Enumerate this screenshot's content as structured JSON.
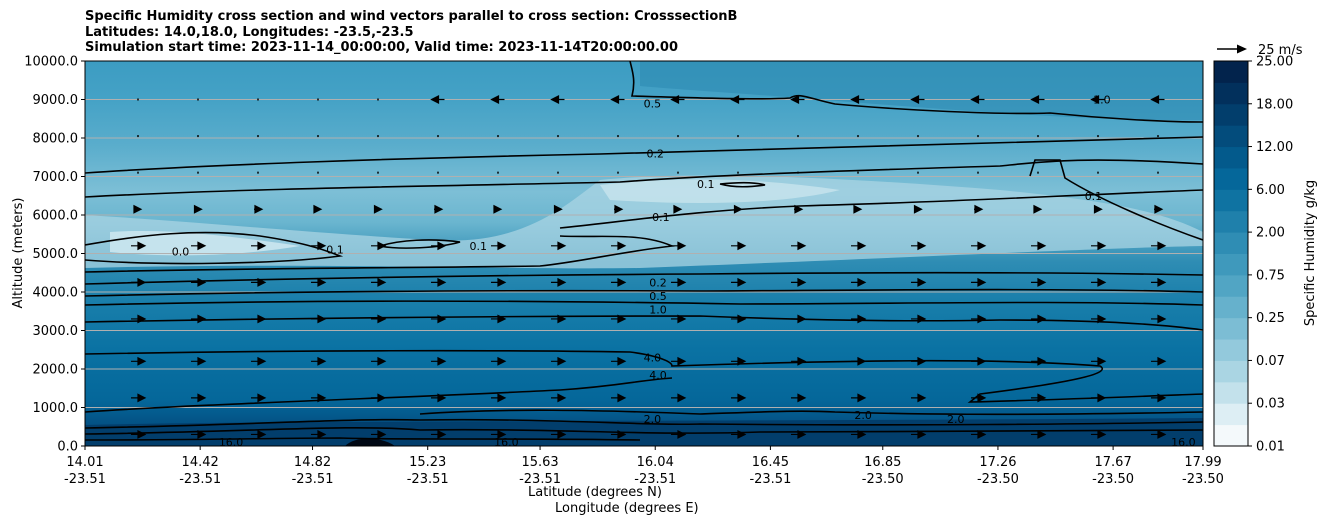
{
  "title_lines": [
    "Specific Humidity cross section and wind vectors parallel to cross section: CrosssectionB",
    "Latitudes: 14.0,18.0, Longitudes: -23.5,-23.5",
    "Simulation start time: 2023-11-14_00:00:00, Valid time: 2023-11-14T20:00:00.00"
  ],
  "xlabel_lines": [
    "Latitude (degrees N)",
    "Longitude (degrees E)"
  ],
  "ylabel": "Altitude (meters)",
  "colorbar_label": "Specific Humidity g/kg",
  "quiver_key_label": "25 m/s",
  "chart_data": {
    "type": "heatmap",
    "title": "Specific Humidity cross section and wind vectors parallel to cross section: CrosssectionB",
    "ylabel": "Altitude (meters)",
    "ylim": [
      0,
      10000
    ],
    "yticks": [
      "0.0",
      "1000.0",
      "2000.0",
      "3000.0",
      "4000.0",
      "5000.0",
      "6000.0",
      "7000.0",
      "8000.0",
      "9000.0",
      "10000.0"
    ],
    "xticks": [
      {
        "lat": "14.01",
        "lon": "-23.51"
      },
      {
        "lat": "14.42",
        "lon": "-23.51"
      },
      {
        "lat": "14.82",
        "lon": "-23.51"
      },
      {
        "lat": "15.23",
        "lon": "-23.51"
      },
      {
        "lat": "15.63",
        "lon": "-23.51"
      },
      {
        "lat": "16.04",
        "lon": "-23.51"
      },
      {
        "lat": "16.45",
        "lon": "-23.51"
      },
      {
        "lat": "16.85",
        "lon": "-23.50"
      },
      {
        "lat": "17.26",
        "lon": "-23.50"
      },
      {
        "lat": "17.67",
        "lon": "-23.50"
      },
      {
        "lat": "17.99",
        "lon": "-23.50"
      }
    ],
    "grid": "horizontal",
    "colorbar_levels": [
      0.01,
      0.02,
      0.03,
      0.05,
      0.07,
      0.1,
      0.25,
      0.5,
      0.75,
      1.0,
      2.0,
      4.0,
      6.0,
      8.0,
      12.0,
      16.0,
      18.0,
      22.0,
      25.0
    ],
    "colorbar_tick_labels": [
      "0.01",
      "0.03",
      "0.07",
      "0.25",
      "0.75",
      "2.00",
      "6.00",
      "12.00",
      "18.00",
      "25.00"
    ],
    "colors": [
      "#f4f9fb",
      "#ddeef4",
      "#c3e1eb",
      "#aad5e3",
      "#93c9dc",
      "#7cbdd4",
      "#66b1cc",
      "#51a5c4",
      "#3f99bc",
      "#2f8db4",
      "#1f80ab",
      "#0f73a2",
      "#05679a",
      "#035a8c",
      "#034c7c",
      "#023e6c",
      "#02305c",
      "#02234c"
    ],
    "contour_labels": [
      {
        "text": "0.5",
        "lat": 16.03,
        "alt": 8900
      },
      {
        "text": "0.2",
        "lat": 16.04,
        "alt": 7600
      },
      {
        "text": "0.1",
        "lat": 16.06,
        "alt": 5950
      },
      {
        "text": "0.2",
        "lat": 16.05,
        "alt": 4250
      },
      {
        "text": "0.5",
        "lat": 16.05,
        "alt": 3900
      },
      {
        "text": "1.0",
        "lat": 16.05,
        "alt": 3550
      },
      {
        "text": "4.0",
        "lat": 16.03,
        "alt": 2300
      },
      {
        "text": "4.0",
        "lat": 16.05,
        "alt": 1850
      },
      {
        "text": "2.0",
        "lat": 16.03,
        "alt": 700
      },
      {
        "text": "0.0",
        "lat": 14.35,
        "alt": 5050
      },
      {
        "text": "0.1",
        "lat": 14.9,
        "alt": 5100
      },
      {
        "text": "0.1",
        "lat": 15.41,
        "alt": 5200
      },
      {
        "text": "0.1",
        "lat": 16.22,
        "alt": 6800
      },
      {
        "text": "0.1",
        "lat": 17.6,
        "alt": 6500
      },
      {
        "text": "1.0",
        "lat": 17.63,
        "alt": 9000
      },
      {
        "text": "2.0",
        "lat": 16.78,
        "alt": 800
      },
      {
        "text": "2.0",
        "lat": 17.11,
        "alt": 700
      },
      {
        "text": "16.0",
        "lat": 14.53,
        "alt": 100
      },
      {
        "text": "16.0",
        "lat": 15.51,
        "alt": 100
      },
      {
        "text": "16.0",
        "lat": 17.92,
        "alt": 100
      }
    ],
    "quiver_key": {
      "label": "25 m/s",
      "value": 25
    }
  }
}
